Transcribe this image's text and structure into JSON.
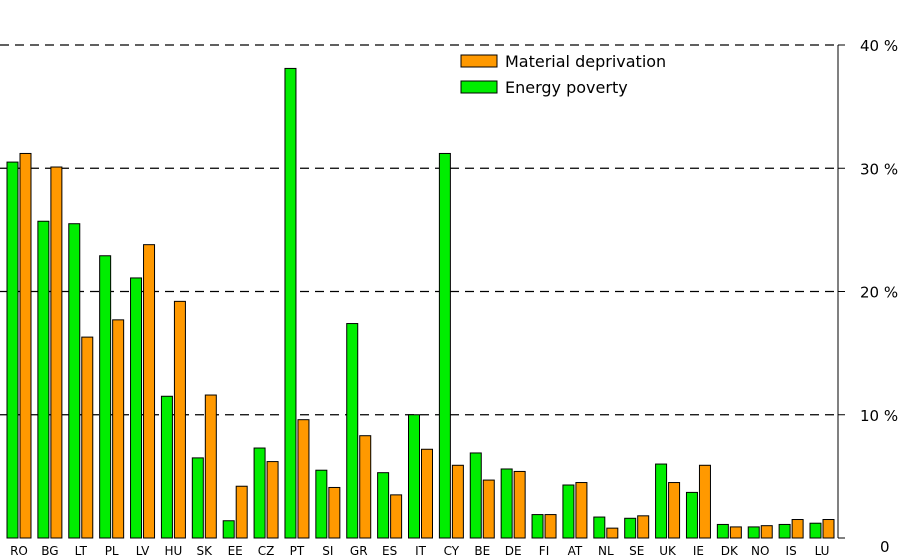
{
  "chart_data": {
    "type": "bar",
    "categories": [
      "RO",
      "BG",
      "LT",
      "PL",
      "LV",
      "HU",
      "SK",
      "EE",
      "CZ",
      "PT",
      "SI",
      "GR",
      "ES",
      "IT",
      "CY",
      "BE",
      "DE",
      "FI",
      "AT",
      "NL",
      "SE",
      "UK",
      "IE",
      "DK",
      "NO",
      "IS",
      "LU"
    ],
    "series": [
      {
        "name": "Energy poverty",
        "color": "#00ee00",
        "values": [
          30.5,
          25.7,
          25.5,
          22.9,
          21.1,
          11.5,
          6.5,
          1.4,
          7.3,
          38.1,
          5.5,
          17.4,
          5.3,
          10.0,
          31.2,
          6.9,
          5.6,
          1.9,
          4.3,
          1.7,
          1.6,
          6.0,
          3.7,
          1.1,
          0.9,
          1.1,
          1.2
        ]
      },
      {
        "name": "Material deprivation",
        "color": "#ff9900",
        "values": [
          31.2,
          30.1,
          16.3,
          17.7,
          23.8,
          19.2,
          11.6,
          4.2,
          6.2,
          9.6,
          4.1,
          8.3,
          3.5,
          7.2,
          5.9,
          4.7,
          5.4,
          1.9,
          4.5,
          0.8,
          1.8,
          4.5,
          5.9,
          0.9,
          1.0,
          1.5,
          1.5
        ]
      }
    ],
    "ylim": [
      0,
      40
    ],
    "yticks": [
      "0",
      "10 %",
      "20 %",
      "30 %",
      "40 %"
    ],
    "ytick_values": [
      0,
      10,
      20,
      30,
      40
    ],
    "grid": "dashed horizontal",
    "legend_position": "top-center",
    "legend": [
      "Material deprivation",
      "Energy poverty"
    ],
    "y_axis_side": "right"
  }
}
